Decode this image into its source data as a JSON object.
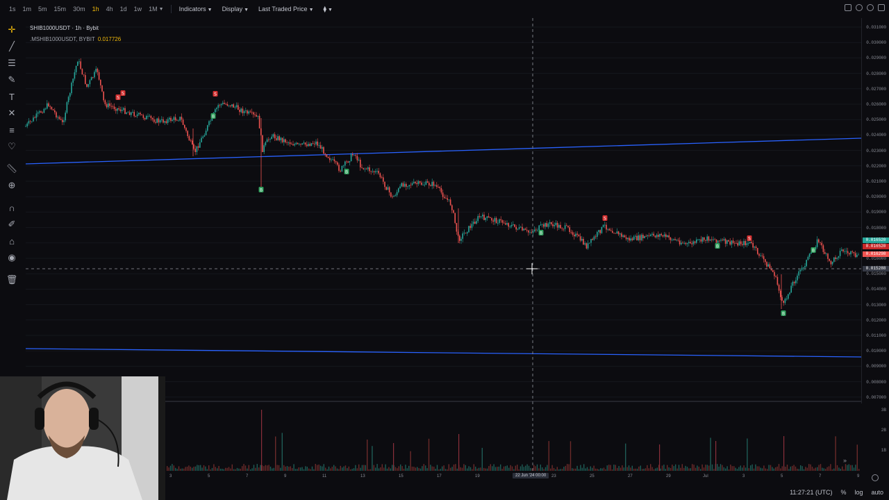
{
  "toolbar": {
    "timeframes": [
      "1s",
      "1m",
      "5m",
      "15m",
      "30m",
      "1h",
      "4h",
      "1d",
      "1w",
      "1M"
    ],
    "active_timeframe": "1h",
    "indicators_label": "Indicators",
    "display_label": "Display",
    "price_type_label": "Last Traded Price"
  },
  "legend": {
    "symbol_line": "SHIB1000USDT · 1h · Bybit",
    "mark_line": ".MSHIB1000USDT, BYBIT",
    "mark_value": "0.017726"
  },
  "price_axis": {
    "labels": [
      "0.031000",
      "0.030000",
      "0.029000",
      "0.028000",
      "0.027000",
      "0.026000",
      "0.025000",
      "0.024000",
      "0.023000",
      "0.022000",
      "0.021000",
      "0.020000",
      "0.019000",
      "0.018000",
      "0.017000",
      "0.016000",
      "0.015000",
      "0.014000",
      "0.013000",
      "0.012000",
      "0.011000",
      "0.010000",
      "0.009000",
      "0.008000",
      "0.007000"
    ],
    "tags": [
      {
        "text": "0.016520",
        "color": "#26a69a"
      },
      {
        "text": "0.016520",
        "color": "#c62828"
      },
      {
        "text": "0.016298",
        "color": "#ef5350"
      },
      {
        "text": "0.015288",
        "color": "#363a45"
      }
    ]
  },
  "volume_axis": {
    "labels": [
      "3B",
      "2B",
      "1B"
    ]
  },
  "time_axis": {
    "labels": [
      "3",
      "5",
      "7",
      "9",
      "11",
      "13",
      "15",
      "17",
      "19",
      "23",
      "25",
      "27",
      "29",
      "Jul",
      "3",
      "5",
      "7",
      "9"
    ],
    "crosshair_label": "22 Jun '24  00:00"
  },
  "markers": {
    "buy_label": "B",
    "sell_label": "S"
  },
  "status_bar": {
    "time": "11:27:21 (UTC)",
    "percent_label": "%",
    "log_label": "log",
    "auto_label": "auto"
  },
  "colors": {
    "up": "#26a69a",
    "down": "#ef5350",
    "trendline": "#2962ff",
    "accent": "#f0b90b"
  }
}
